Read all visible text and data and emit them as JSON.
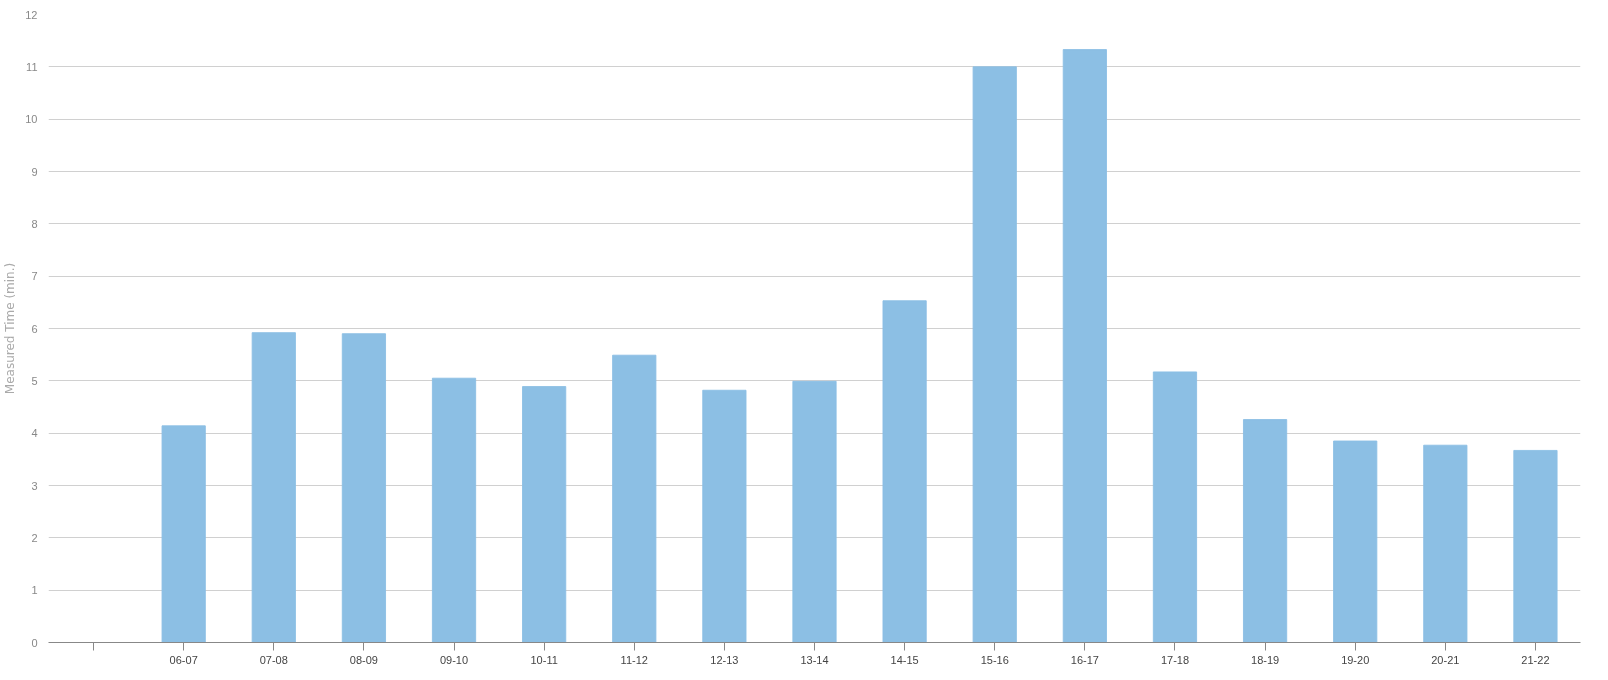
{
  "chart_data": {
    "type": "bar",
    "ylabel": "Measured Time (min.)",
    "categories": [
      null,
      "06-07",
      "07-08",
      "08-09",
      "09-10",
      "10-11",
      "11-12",
      "12-13",
      "13-14",
      "14-15",
      "15-16",
      "16-17",
      "17-18",
      "18-19",
      "19-20",
      "20-21",
      "21-22"
    ],
    "values": [
      null,
      4.14,
      5.92,
      5.9,
      5.05,
      4.89,
      5.49,
      4.82,
      4.99,
      6.53,
      11.0,
      11.33,
      5.17,
      4.26,
      3.85,
      3.77,
      3.67
    ],
    "color": "#8cbfe4",
    "ylim": [
      0,
      12
    ],
    "yticks": [
      0,
      1,
      2,
      3,
      4,
      5,
      6,
      7,
      8,
      9,
      10,
      11,
      12
    ],
    "grid": "y"
  }
}
